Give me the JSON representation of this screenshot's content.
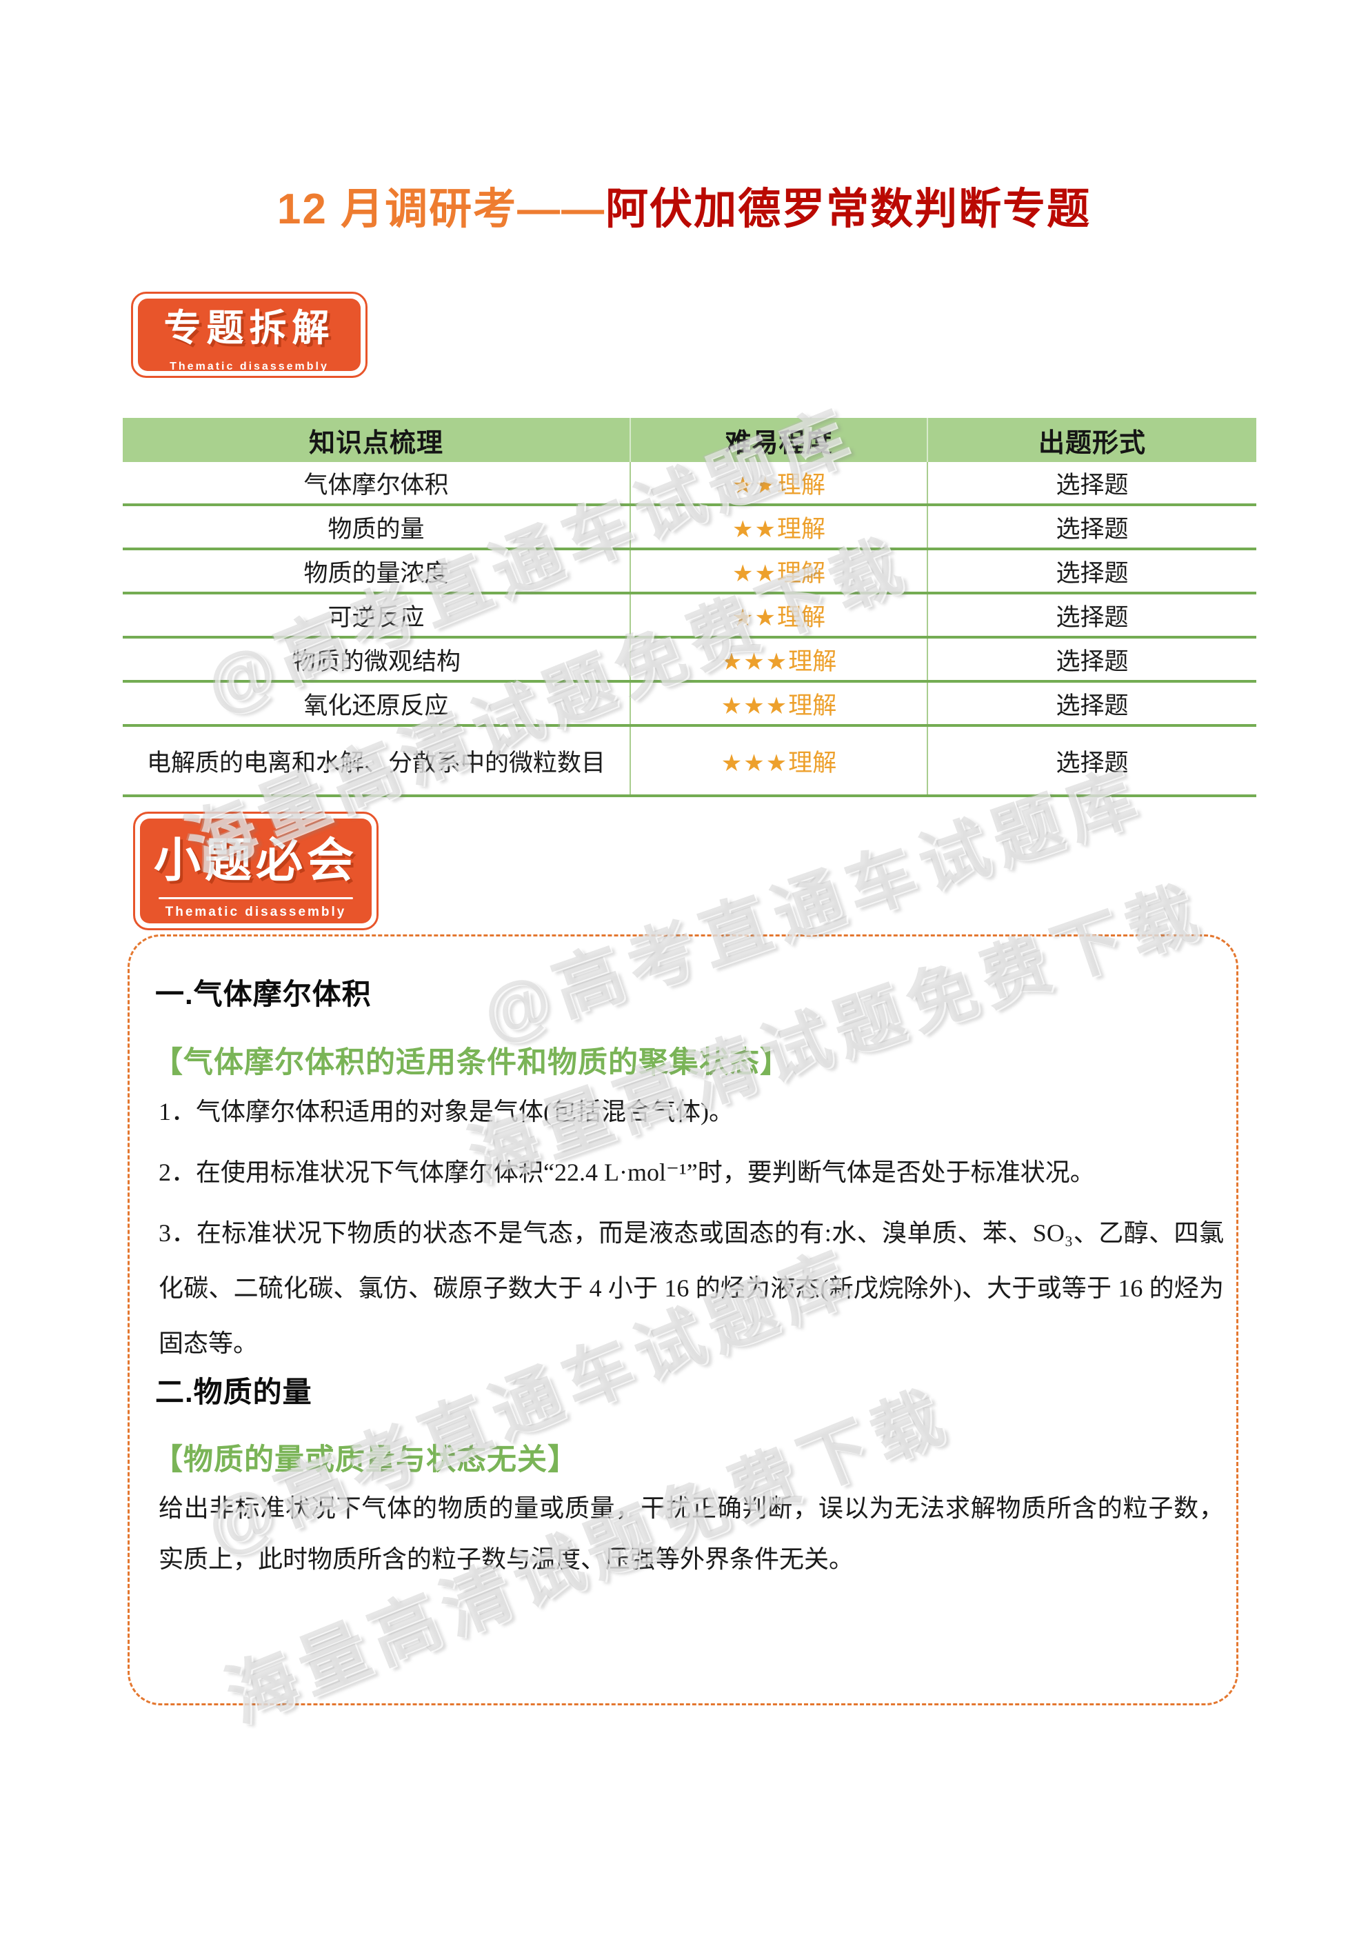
{
  "title": {
    "orange_part": "12 月调研考——",
    "red_part": "阿伏加德罗常数判断专题"
  },
  "badges": {
    "badge1": {
      "zh": "专题拆解",
      "en": "Thematic disassembly"
    },
    "badge2": {
      "zh": "小题必会",
      "en": "Thematic disassembly"
    }
  },
  "table": {
    "headers": [
      "知识点梳理",
      "难易程度",
      "出题形式"
    ],
    "rows": [
      {
        "topic": "气体摩尔体积",
        "stars": "★★",
        "level": "理解",
        "format": "选择题"
      },
      {
        "topic": "物质的量",
        "stars": "★★",
        "level": "理解",
        "format": "选择题"
      },
      {
        "topic": "物质的量浓度",
        "stars": "★★",
        "level": "理解",
        "format": "选择题"
      },
      {
        "topic": "可逆反应",
        "stars": "★★",
        "level": "理解",
        "format": "选择题"
      },
      {
        "topic": "物质的微观结构",
        "stars": "★★★",
        "level": "理解",
        "format": "选择题"
      },
      {
        "topic": "氧化还原反应",
        "stars": "★★★",
        "level": "理解",
        "format": "选择题"
      },
      {
        "topic": "电解质的电离和水解、分散系中的微粒数目",
        "stars": "★★★",
        "level": "理解",
        "format": "选择题"
      }
    ]
  },
  "sections": {
    "one": {
      "title": "一.气体摩尔体积",
      "green_heading": "【气体摩尔体积的适用条件和物质的聚集状态】",
      "item1": "1．气体摩尔体积适用的对象是气体(包括混合气体)。",
      "item2": "2．在使用标准状况下气体摩尔体积“22.4 L·mol⁻¹”时，要判断气体是否处于标准状况。",
      "item3": "3．在标准状况下物质的状态不是气态，而是液态或固态的有:水、溴单质、苯、SO₃、乙醇、四氯化碳、二硫化碳、氯仿、碳原子数大于 4 小于 16 的烃为液态(新戊烷除外)、大于或等于 16 的烃为固态等。"
    },
    "two": {
      "title": "二.物质的量",
      "green_heading": "【物质的量或质量与状态无关】",
      "paragraph": "给出非标准状况下气体的物质的量或质量，干扰正确判断，误以为无法求解物质所含的粒子数，实质上，此时物质所含的粒子数与温度、压强等外界条件无关。"
    }
  },
  "watermarks": {
    "line1": "@高考直通车试题库",
    "line2": "海量高清试题免费下载"
  },
  "colors": {
    "title_orange": "#EE7C30",
    "title_red": "#BA0902",
    "badge_orange": "#E8552B",
    "table_header_green": "#A9D18E",
    "separator_green": "#74AC53",
    "column_line_green": "#A9CD8F",
    "star_orange": "#EDA02C",
    "green_heading": "#7AB457",
    "dashed_border_orange": "#E4772F"
  }
}
